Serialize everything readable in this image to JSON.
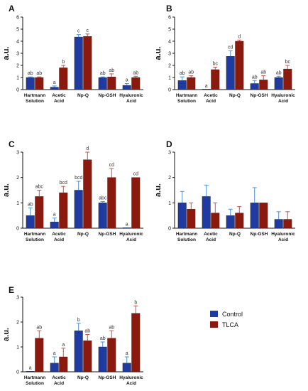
{
  "colors": {
    "control": "#1f3aa0",
    "tlca": "#8b1a0e",
    "control_err": "#4a90d9",
    "tlca_err": "#d94a4a",
    "sig_red": "#cc1111"
  },
  "legend": {
    "control_label": "Control",
    "tlca_label": "TLCA"
  },
  "chart_data": [
    {
      "panel": "A",
      "type": "bar",
      "ylabel": "a.u.",
      "ylim": [
        0,
        6
      ],
      "yticks": [
        0,
        1,
        2,
        3,
        4,
        5,
        6
      ],
      "categories": [
        [
          "Hartmann",
          "Solution"
        ],
        [
          "Acetic",
          "Acid"
        ],
        [
          "Np-Q"
        ],
        [
          "Np-GSH"
        ],
        [
          "Hyaluronic",
          "Acid"
        ]
      ],
      "series": [
        {
          "name": "Control",
          "values": [
            1.0,
            0.2,
            4.35,
            1.0,
            0.35
          ],
          "errors": [
            0.05,
            0.1,
            0.2,
            0.05,
            0.15
          ]
        },
        {
          "name": "TLCA",
          "values": [
            1.0,
            1.8,
            4.4,
            1.05,
            1.0
          ],
          "errors": [
            0.05,
            0.2,
            0.2,
            0.25,
            0.1
          ]
        }
      ],
      "sig": [
        [
          "ab",
          "ab"
        ],
        [
          "a",
          "b"
        ],
        [
          "c",
          "c"
        ],
        [
          "ab",
          "ab"
        ],
        [
          "a",
          "ab"
        ]
      ],
      "sig_red": [
        [
          false,
          false
        ],
        [
          false,
          false
        ],
        [
          false,
          false
        ],
        [
          false,
          false
        ],
        [
          false,
          false
        ]
      ]
    },
    {
      "panel": "B",
      "type": "bar",
      "ylabel": "a.u.",
      "ylim": [
        0,
        6
      ],
      "yticks": [
        0,
        1,
        2,
        3,
        4,
        5,
        6
      ],
      "categories": [
        [
          "Hartmann",
          "Solution"
        ],
        [
          "Acetic",
          "Acid"
        ],
        [
          "Np-Q"
        ],
        [
          "Np-GSH"
        ],
        [
          "Hyaluronic",
          "Acid"
        ]
      ],
      "series": [
        {
          "name": "Control",
          "values": [
            0.75,
            0.0,
            2.75,
            0.5,
            1.0
          ],
          "errors": [
            0.3,
            0.0,
            0.45,
            0.25,
            0.1
          ]
        },
        {
          "name": "TLCA",
          "values": [
            1.0,
            1.65,
            4.0,
            0.8,
            1.7
          ],
          "errors": [
            0.15,
            0.2,
            0.1,
            0.35,
            0.3
          ]
        }
      ],
      "sig": [
        [
          "ab",
          "ab"
        ],
        [
          "a",
          "bc"
        ],
        [
          "cd",
          "d"
        ],
        [
          "ab",
          "ab"
        ],
        [
          "ab",
          "bc"
        ]
      ],
      "sig_red": [
        [
          false,
          false
        ],
        [
          false,
          false
        ],
        [
          false,
          true
        ],
        [
          false,
          false
        ],
        [
          false,
          false
        ]
      ]
    },
    {
      "panel": "C",
      "type": "bar",
      "ylabel": "a.u.",
      "ylim": [
        0,
        3
      ],
      "yticks": [
        0,
        1,
        2,
        3
      ],
      "categories": [
        [
          "Hartmann",
          "Solution"
        ],
        [
          "Acetic",
          "Acid"
        ],
        [
          "Np-Q"
        ],
        [
          "Np-GSH"
        ],
        [
          "Hyaluronic",
          "Acid"
        ]
      ],
      "series": [
        {
          "name": "Control",
          "values": [
            0.5,
            0.25,
            1.5,
            1.0,
            0.02
          ],
          "errors": [
            0.3,
            0.15,
            0.35,
            0.05,
            0.0
          ]
        },
        {
          "name": "TLCA",
          "values": [
            1.25,
            1.4,
            2.7,
            2.0,
            2.0
          ],
          "errors": [
            0.25,
            0.25,
            0.3,
            0.35,
            0.0
          ]
        }
      ],
      "sig": [
        [
          "ab",
          "abc"
        ],
        [
          "a",
          "bcd"
        ],
        [
          "bcd",
          "d"
        ],
        [
          "abc",
          "cd"
        ],
        [
          "a",
          "cd"
        ]
      ],
      "sig_red": [
        [
          false,
          false
        ],
        [
          false,
          false
        ],
        [
          false,
          true
        ],
        [
          false,
          false
        ],
        [
          false,
          false
        ]
      ]
    },
    {
      "panel": "D",
      "type": "bar",
      "ylabel": "a.u.",
      "ylim": [
        0,
        3
      ],
      "yticks": [
        0,
        1,
        2,
        3
      ],
      "categories": [
        [
          "Hartmann",
          "Solution"
        ],
        [
          "Acetic",
          "Acid"
        ],
        [
          "Np-Q"
        ],
        [
          "Np-GSH"
        ],
        [
          "Hyaluronic",
          "Acid"
        ]
      ],
      "series": [
        {
          "name": "Control",
          "values": [
            1.0,
            1.25,
            0.5,
            1.0,
            0.35
          ],
          "errors": [
            0.45,
            0.45,
            0.25,
            0.6,
            0.3
          ]
        },
        {
          "name": "TLCA",
          "values": [
            0.75,
            0.6,
            0.6,
            1.0,
            0.35
          ],
          "errors": [
            0.25,
            0.4,
            0.25,
            0.0,
            0.3
          ]
        }
      ],
      "sig": [
        [
          "",
          ""
        ],
        [
          "",
          ""
        ],
        [
          "",
          ""
        ],
        [
          "",
          ""
        ],
        [
          "",
          ""
        ]
      ],
      "sig_red": [
        [
          false,
          false
        ],
        [
          false,
          false
        ],
        [
          false,
          false
        ],
        [
          false,
          false
        ],
        [
          false,
          false
        ]
      ]
    },
    {
      "panel": "E",
      "type": "bar",
      "ylabel": "a.u.",
      "ylim": [
        0,
        3
      ],
      "yticks": [
        0,
        1,
        2,
        3
      ],
      "categories": [
        [
          "Hartmann",
          "Solution"
        ],
        [
          "Acetic",
          "Acid"
        ],
        [
          "Np-Q"
        ],
        [
          "Np-GSH"
        ],
        [
          "Hyaluronic",
          "Acid"
        ]
      ],
      "series": [
        {
          "name": "Control",
          "values": [
            0.02,
            0.35,
            1.65,
            1.0,
            0.35
          ],
          "errors": [
            0.0,
            0.25,
            0.3,
            0.2,
            0.25
          ]
        },
        {
          "name": "TLCA",
          "values": [
            1.35,
            0.6,
            1.25,
            1.35,
            2.35
          ],
          "errors": [
            0.3,
            0.35,
            0.25,
            0.3,
            0.3
          ]
        }
      ],
      "sig": [
        [
          "a",
          "ab"
        ],
        [
          "a",
          "a"
        ],
        [
          "b",
          "ab"
        ],
        [
          "ab",
          "ab"
        ],
        [
          "a",
          "b"
        ]
      ],
      "sig_red": [
        [
          false,
          false
        ],
        [
          false,
          false
        ],
        [
          false,
          false
        ],
        [
          false,
          false
        ],
        [
          false,
          true
        ]
      ]
    }
  ]
}
